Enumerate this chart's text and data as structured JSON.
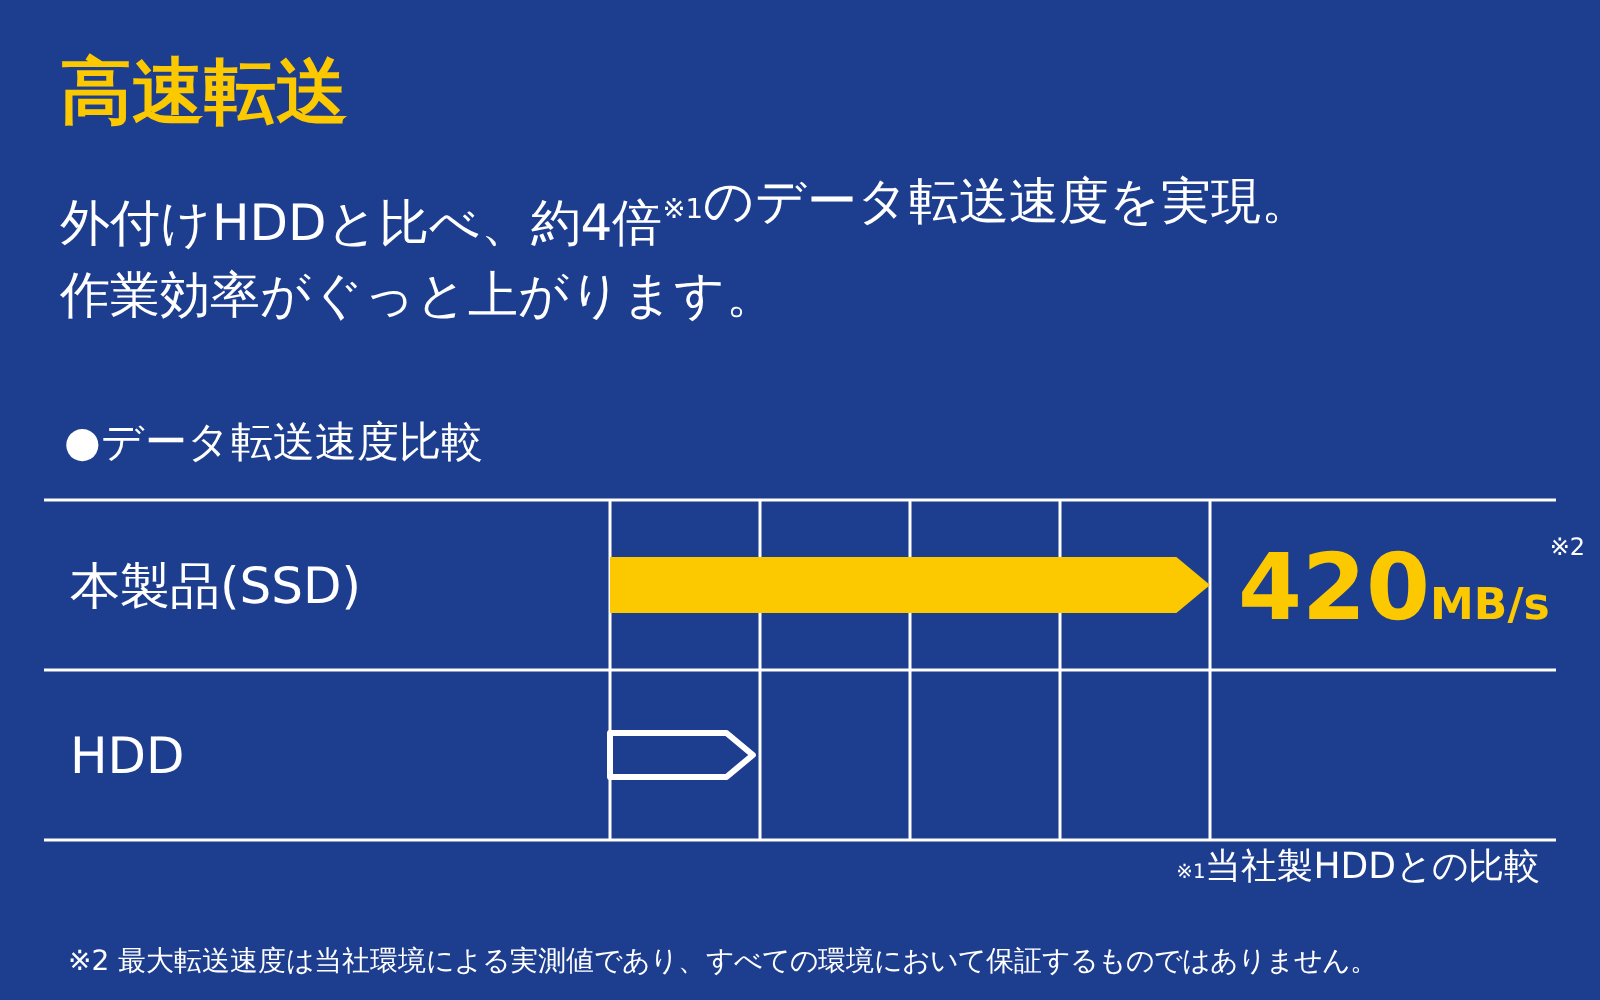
{
  "chart_data": {
    "type": "bar",
    "orientation": "horizontal",
    "title": "高速転送",
    "subtitle": "外付けHDDと比べ、約4倍$^{※1}$のデータ転送速度を実現。",
    "categories": [
      "本製品(SSD)",
      "HDD"
    ],
    "values": [
      420,
      100
    ],
    "colors": [
      "#fcc800",
      "#ffffff"
    ],
    "value_labels": [
      "420MB/s$^{※2}$",
      null
    ],
    "grid": "x",
    "annotations": [
      "作業効率がぐっと上がります。",
      "●データ転送速度比較",
      "$^{※1}$当社製HDDとの比較",
      "※2 最大転送速度は当社環境による実測値であり、すべての環境において保証するものではありません。"
    ]
  }
}
